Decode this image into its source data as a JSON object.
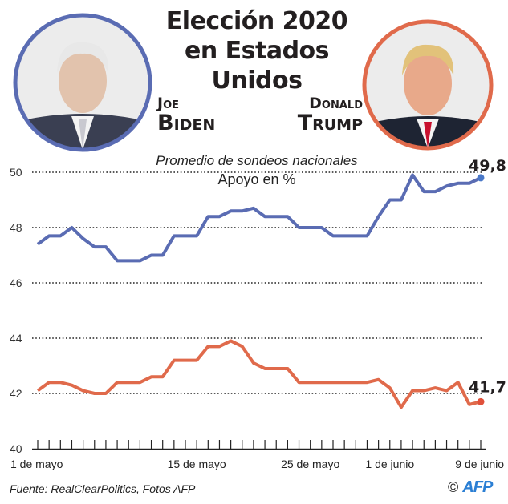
{
  "header": {
    "title_lines": [
      "Elección 2020",
      "en Estados",
      "Unidos"
    ],
    "candidate_left": {
      "first": "Joe",
      "last": "Biden",
      "color": "#5a6cb3",
      "photo": "biden-portrait"
    },
    "candidate_right": {
      "first": "Donald",
      "last": "Trump",
      "color": "#e06a4b",
      "photo": "trump-portrait"
    }
  },
  "chart_data": {
    "type": "line",
    "title": "Promedio de sondeos nacionales",
    "ylabel": "Apoyo en %",
    "ylim": [
      40,
      50
    ],
    "yticks": [
      40,
      42,
      44,
      46,
      48,
      50
    ],
    "ytick_labels": [
      "40",
      "42",
      "44",
      "46",
      "48",
      "50"
    ],
    "x_start": "1 de mayo",
    "x_end": "9 de junio",
    "x_tick_labels": [
      {
        "day": 0,
        "label": "1 de mayo"
      },
      {
        "day": 14,
        "label": "15 de mayo"
      },
      {
        "day": 24,
        "label": "25 de mayo"
      },
      {
        "day": 31,
        "label": "1 de junio"
      },
      {
        "day": 39,
        "label": "9 de junio"
      }
    ],
    "grid": "dotted horizontal",
    "series": [
      {
        "name": "Biden",
        "color": "#5a6cb3",
        "end_label": "49,8",
        "values": [
          47.4,
          47.7,
          47.7,
          48.0,
          47.6,
          47.3,
          47.3,
          46.8,
          46.8,
          46.8,
          47.0,
          47.0,
          47.7,
          47.7,
          47.7,
          48.4,
          48.4,
          48.6,
          48.6,
          48.7,
          48.4,
          48.4,
          48.4,
          48.0,
          48.0,
          48.0,
          47.7,
          47.7,
          47.7,
          47.7,
          48.4,
          49.0,
          49.0,
          49.9,
          49.3,
          49.3,
          49.5,
          49.6,
          49.6,
          49.8
        ]
      },
      {
        "name": "Trump",
        "color": "#e06a4b",
        "end_label": "41,7",
        "values": [
          42.1,
          42.4,
          42.4,
          42.3,
          42.1,
          42.0,
          42.0,
          42.4,
          42.4,
          42.4,
          42.6,
          42.6,
          43.2,
          43.2,
          43.2,
          43.7,
          43.7,
          43.9,
          43.7,
          43.1,
          42.9,
          42.9,
          42.9,
          42.4,
          42.4,
          42.4,
          42.4,
          42.4,
          42.4,
          42.4,
          42.5,
          42.2,
          41.5,
          42.1,
          42.1,
          42.2,
          42.1,
          42.4,
          41.6,
          41.7
        ]
      }
    ]
  },
  "footer": {
    "source": "Fuente: RealClearPolitics, Fotos AFP",
    "copyright": "©",
    "logo": "AFP"
  }
}
